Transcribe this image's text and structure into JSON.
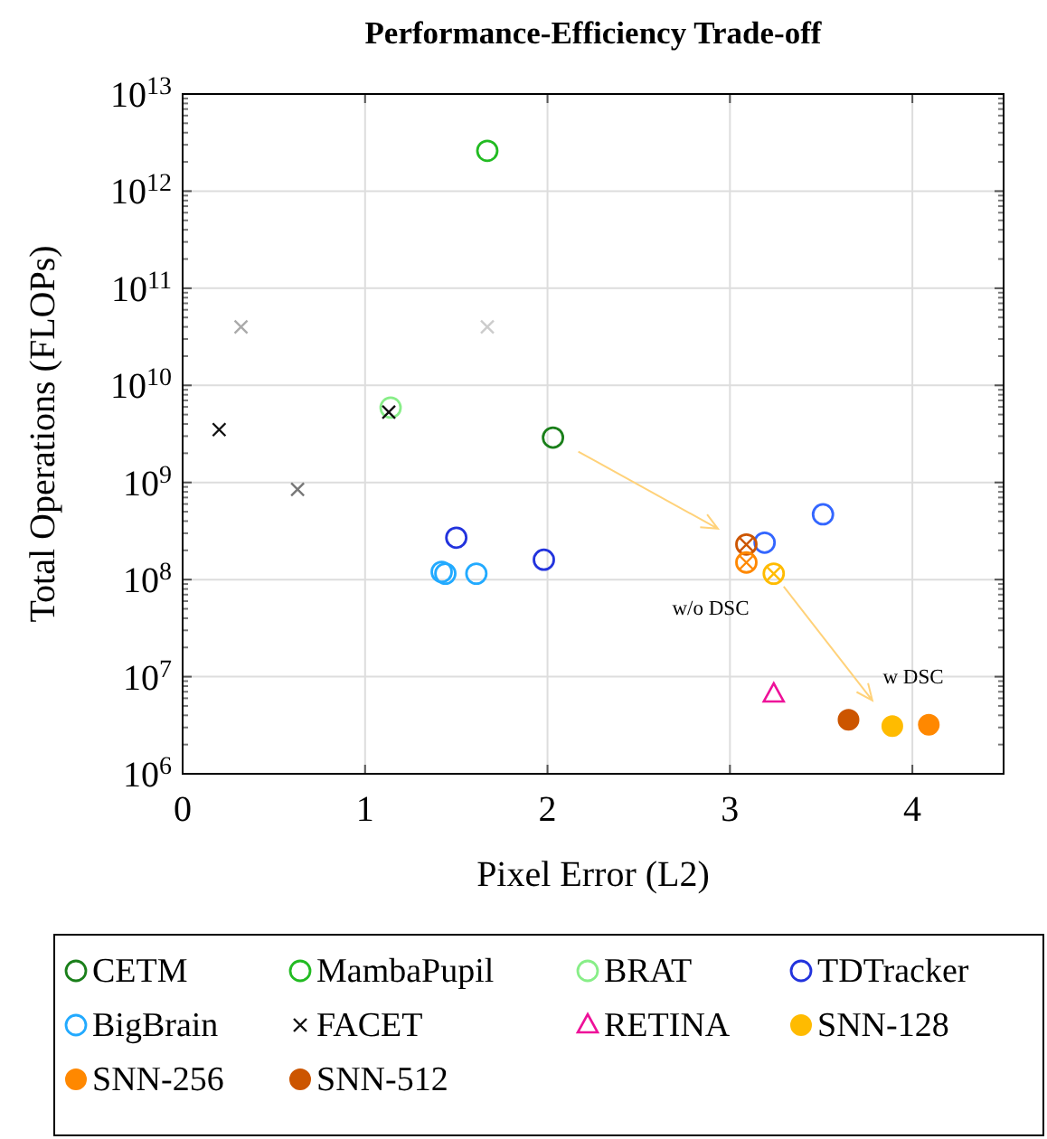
{
  "chart_data": {
    "type": "scatter",
    "title": "Performance-Efficiency Trade-off",
    "xlabel": "Pixel Error (L2)",
    "ylabel": "Total Operations (FLOPs)",
    "xlim": [
      0,
      4.5
    ],
    "xticks": [
      0,
      1,
      2,
      3,
      4
    ],
    "ylim": [
      1000000,
      10000000000000
    ],
    "log": "y",
    "yticks": [
      {
        "value": 1000000,
        "label": "10$^{6}$"
      },
      {
        "value": 10000000,
        "label": "10$^{7}$"
      },
      {
        "value": 100000000,
        "label": "10$^{8}$"
      },
      {
        "value": 1000000000,
        "label": "10$^{9}$"
      },
      {
        "value": 10000000000,
        "label": "10$^{10}$"
      },
      {
        "value": 100000000000,
        "label": "10$^{11}$"
      },
      {
        "value": 1000000000000,
        "label": "10$^{12}$"
      },
      {
        "value": 10000000000000,
        "label": "10$^{13}$"
      }
    ],
    "grid": true,
    "legend": "bottom",
    "series": [
      {
        "name": "CETM",
        "color": "#1a7f1a",
        "marker": "circle",
        "x": [
          2.03
        ],
        "values": [
          2900000000
        ]
      },
      {
        "name": "MambaPupil",
        "color": "#22bb22",
        "marker": "circle",
        "x": [
          1.67
        ],
        "values": [
          2600000000000
        ]
      },
      {
        "name": "BRAT",
        "color": "#88ee88",
        "marker": "circle",
        "x": [
          1.14
        ],
        "values": [
          5900000000
        ]
      },
      {
        "name": "TDTracker",
        "color": "#2233dd",
        "marker": "circle",
        "x": [
          1.5,
          1.98
        ],
        "values": [
          270000000,
          160000000
        ]
      },
      {
        "name": "BigBrain",
        "color": "#22aaff",
        "marker": "circle",
        "x": [
          1.42,
          1.44,
          1.61
        ],
        "values": [
          120000000,
          115000000,
          115000000
        ]
      },
      {
        "name": "FACET",
        "color": "#111111",
        "marker": "cross",
        "x": [
          0.2,
          1.13
        ],
        "values": [
          3500000000,
          5300000000
        ]
      },
      {
        "name": "RETINA",
        "color": "#ee1199",
        "marker": "triangle",
        "x": [
          3.24
        ],
        "values": [
          6600000
        ]
      },
      {
        "name": "SNN-128",
        "color": "#ffbb00",
        "marker": "filled-circle",
        "x": [
          3.89
        ],
        "values": [
          3100000
        ]
      },
      {
        "name": "SNN-256",
        "color": "#ff8800",
        "marker": "filled-circle",
        "x": [
          4.09
        ],
        "values": [
          3200000
        ]
      },
      {
        "name": "SNN-512",
        "color": "#cc5500",
        "marker": "filled-circle",
        "x": [
          3.65
        ],
        "values": [
          3600000
        ]
      },
      {
        "color": "#3366ff",
        "marker": "circle",
        "x": [
          3.19,
          3.51
        ],
        "values": [
          240000000,
          470000000
        ]
      },
      {
        "color": "#777777",
        "marker": "cross",
        "x": [
          0.63
        ],
        "values": [
          850000000
        ]
      },
      {
        "color": "#aaaaaa",
        "marker": "cross",
        "x": [
          0.32
        ],
        "values": [
          40000000000
        ]
      },
      {
        "color": "#cccccc",
        "marker": "cross",
        "x": [
          1.67
        ],
        "values": [
          40000000000
        ]
      },
      {
        "color": "#cc5500",
        "marker": "circled-cross",
        "x": [
          3.09
        ],
        "values": [
          230000000
        ]
      },
      {
        "color": "#ff8800",
        "marker": "circled-cross",
        "x": [
          3.09
        ],
        "values": [
          150000000
        ]
      },
      {
        "color": "#ffbb00",
        "marker": "circled-cross",
        "x": [
          3.24
        ],
        "values": [
          115000000
        ]
      }
    ],
    "annotations": [
      {
        "text": "w/o DSC",
        "x": 3.09,
        "y": 230000000
      },
      {
        "text": "w DSC",
        "x": 3.89,
        "y": 3100000
      }
    ]
  }
}
